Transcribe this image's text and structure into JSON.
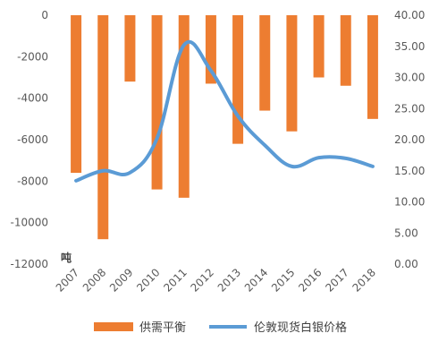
{
  "chart_data": {
    "type": "bar+line",
    "categories": [
      "2007",
      "2008",
      "2009",
      "2010",
      "2011",
      "2012",
      "2013",
      "2014",
      "2015",
      "2016",
      "2017",
      "2018"
    ],
    "series": [
      {
        "name": "供需平衡",
        "type": "bar",
        "axis": "left",
        "color": "#ED7D31",
        "values": [
          -7600,
          -10800,
          -3200,
          -8400,
          -8800,
          -3300,
          -6200,
          -4600,
          -5600,
          -3000,
          -3400,
          -5000
        ]
      },
      {
        "name": "伦敦现货白银价格",
        "type": "line",
        "axis": "right",
        "color": "#5B9BD5",
        "values": [
          13.4,
          15.0,
          14.7,
          20.2,
          35.2,
          31.1,
          23.8,
          19.1,
          15.7,
          17.1,
          17.0,
          15.7
        ]
      }
    ],
    "y_left": {
      "ylim": [
        -12000,
        0
      ],
      "ticks": [
        0,
        -2000,
        -4000,
        -6000,
        -8000,
        -10000,
        -12000
      ],
      "tick_labels": [
        "0",
        "-2000",
        "-4000",
        "-6000",
        "-8000",
        "-10000",
        "-12000"
      ],
      "unit_label": "吨"
    },
    "y_right": {
      "ylim": [
        0,
        40
      ],
      "ticks": [
        40,
        35,
        30,
        25,
        20,
        15,
        10,
        5,
        0
      ],
      "tick_labels": [
        "40.00",
        "35.00",
        "30.00",
        "25.00",
        "20.00",
        "15.00",
        "10.00",
        "5.00",
        "0.00"
      ]
    },
    "legend_position": "bottom",
    "grid": false
  }
}
